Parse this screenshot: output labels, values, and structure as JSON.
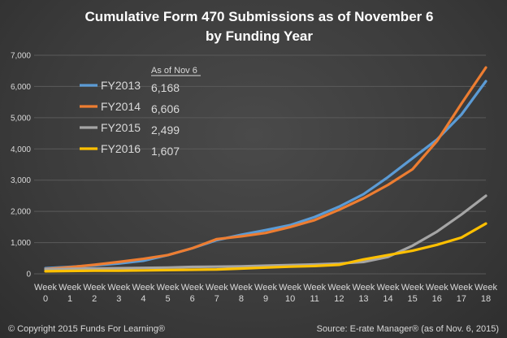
{
  "chart_data": {
    "type": "line",
    "title": "Cumulative Form 470 Submissions as of November 6",
    "subtitle": "by Funding Year",
    "categories": [
      [
        "Week",
        "0"
      ],
      [
        "Week",
        "1"
      ],
      [
        "Week",
        "2"
      ],
      [
        "Week",
        "3"
      ],
      [
        "Week",
        "4"
      ],
      [
        "Week",
        "5"
      ],
      [
        "Week",
        "6"
      ],
      [
        "Week",
        "7"
      ],
      [
        "Week",
        "8"
      ],
      [
        "Week",
        "9"
      ],
      [
        "Week",
        "10"
      ],
      [
        "Week",
        "11"
      ],
      [
        "Week",
        "12"
      ],
      [
        "Week",
        "13"
      ],
      [
        "Week",
        "14"
      ],
      [
        "Week",
        "15"
      ],
      [
        "Week",
        "16"
      ],
      [
        "Week",
        "17"
      ],
      [
        "Week",
        "18"
      ]
    ],
    "ylim": [
      0,
      7000
    ],
    "yticks": [
      "0",
      "1,000",
      "2,000",
      "3,000",
      "4,000",
      "5,000",
      "6,000",
      "7,000"
    ],
    "ytick_values": [
      0,
      1000,
      2000,
      3000,
      4000,
      5000,
      6000,
      7000
    ],
    "grid": true,
    "legend_header": "As of Nov 6",
    "series": [
      {
        "name": "FY2013",
        "display_value": "6,168",
        "color": "#5b9bd5",
        "values": [
          180,
          220,
          270,
          330,
          420,
          600,
          820,
          1080,
          1250,
          1400,
          1560,
          1820,
          2150,
          2550,
          3100,
          3700,
          4300,
          5100,
          6168
        ]
      },
      {
        "name": "FY2014",
        "display_value": "6,606",
        "color": "#ed7d31",
        "values": [
          150,
          210,
          290,
          380,
          480,
          600,
          820,
          1110,
          1200,
          1310,
          1500,
          1720,
          2050,
          2420,
          2850,
          3350,
          4250,
          5450,
          6606
        ]
      },
      {
        "name": "FY2015",
        "display_value": "2,499",
        "color": "#a5a5a5",
        "values": [
          140,
          160,
          170,
          180,
          190,
          200,
          220,
          230,
          240,
          260,
          280,
          300,
          330,
          380,
          540,
          900,
          1350,
          1900,
          2499
        ]
      },
      {
        "name": "FY2016",
        "display_value": "1,607",
        "color": "#ffc000",
        "values": [
          80,
          90,
          100,
          100,
          110,
          120,
          130,
          140,
          170,
          200,
          230,
          250,
          290,
          460,
          600,
          740,
          930,
          1160,
          1607
        ]
      }
    ]
  },
  "footer": {
    "left": "© Copyright 2015 Funds For Learning®",
    "right": "Source: E-rate Manager® (as of Nov. 6, 2015)"
  }
}
